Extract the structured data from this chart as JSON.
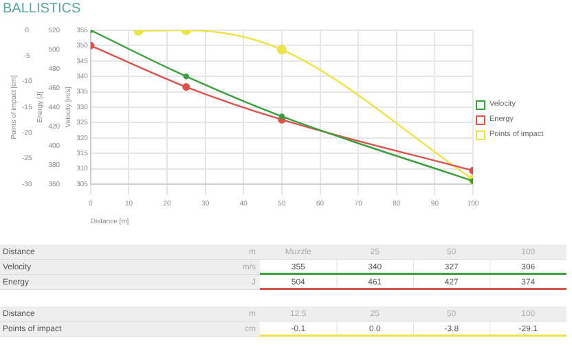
{
  "chart_data": [
    {
      "type": "line",
      "title": "BALLISTICS",
      "xlabel": "Distance [m]",
      "ylabel": "Velocity [m/s]",
      "y2label": "Energy [J]",
      "y3label": "Points of impact [cm]",
      "xlim": [
        0,
        100
      ],
      "xticks": [
        0,
        10,
        20,
        30,
        40,
        50,
        60,
        70,
        80,
        90,
        100
      ],
      "ylim": [
        305,
        355
      ],
      "yticks": [
        305,
        310,
        315,
        320,
        325,
        330,
        335,
        340,
        345,
        350,
        355
      ],
      "y2lim": [
        360,
        520
      ],
      "y2ticks": [
        360,
        380,
        400,
        420,
        440,
        460,
        480,
        500,
        520
      ],
      "y3lim": [
        -30,
        0
      ],
      "y3ticks": [
        -30,
        -25,
        -20,
        -15,
        -10,
        -5,
        0
      ],
      "series": [
        {
          "name": "Velocity",
          "color": "#3c9e3f",
          "axis": "y",
          "x": [
            0,
            25,
            50,
            100
          ],
          "values": [
            355,
            340,
            327,
            306
          ]
        },
        {
          "name": "Energy",
          "color": "#d9534f",
          "axis": "y2",
          "x": [
            0,
            25,
            50,
            100
          ],
          "values": [
            504,
            461,
            427,
            374
          ]
        },
        {
          "name": "Points of impact",
          "color": "#ece24a",
          "axis": "y3",
          "x": [
            12.5,
            25,
            50,
            100
          ],
          "values": [
            -0.1,
            0.0,
            -3.8,
            -29.1
          ]
        }
      ],
      "grid": true,
      "legend": "right",
      "marker": "circle",
      "line_style": "solid"
    },
    {
      "type": "other",
      "xlabel": "Distance",
      "categories": [
        "Muzzle",
        "25",
        "50",
        "100"
      ],
      "annotations": [
        "m",
        "m/s",
        "J"
      ],
      "series": [
        {
          "name": "Velocity",
          "values": [
            355,
            340,
            327,
            306
          ],
          "value_labels": [
            "355",
            "340",
            "327",
            "306"
          ]
        },
        {
          "name": "Energy",
          "values": [
            504,
            461,
            427,
            374
          ],
          "value_labels": [
            "504",
            "461",
            "427",
            "374"
          ]
        }
      ]
    },
    {
      "type": "other",
      "xlabel": "Distance",
      "categories": [
        "12.5",
        "25",
        "50",
        "100"
      ],
      "annotations": [
        "m",
        "cm"
      ],
      "series": [
        {
          "name": "Points of impact",
          "values": [
            -0.1,
            0.0,
            -3.8,
            -29.1
          ],
          "value_labels": [
            "-0.1",
            "0.0",
            "-3.8",
            "-29.1"
          ]
        }
      ]
    }
  ]
}
